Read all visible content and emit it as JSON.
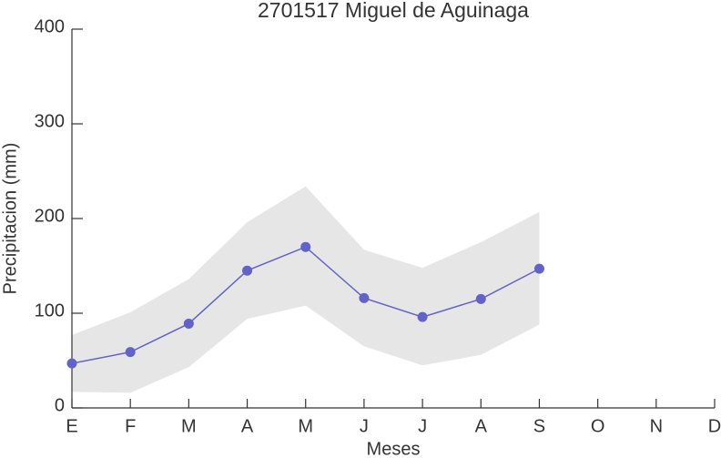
{
  "chart_data": {
    "type": "line",
    "title": "2701517 Miguel de Aguinaga",
    "x_label": "Meses",
    "y_label": "Precipitacion (mm)",
    "categories": [
      "E",
      "F",
      "M",
      "A",
      "M",
      "J",
      "J",
      "A",
      "S",
      "O",
      "N",
      "D"
    ],
    "values": [
      47,
      59,
      89,
      145,
      170,
      116,
      96,
      115,
      147,
      null,
      null,
      null
    ],
    "color": "#6262c8",
    "band": {
      "color": "#e6e6e6",
      "upper": [
        77,
        101,
        136,
        196,
        234,
        167,
        148,
        175,
        207,
        null,
        null,
        null
      ],
      "lower": [
        17,
        16,
        43,
        94,
        108,
        65,
        45,
        56,
        88,
        null,
        null,
        null
      ]
    },
    "ylim": [
      0,
      400
    ],
    "yticks": [
      0,
      100,
      200,
      300,
      400
    ]
  }
}
